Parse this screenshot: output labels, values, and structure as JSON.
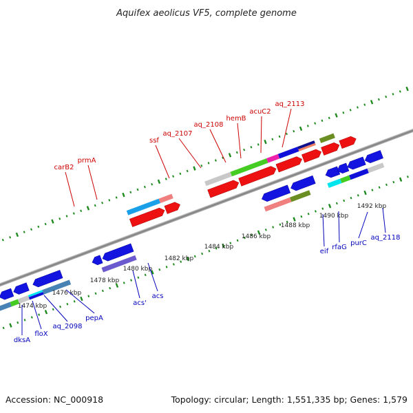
{
  "title": "Aquifex aeolicus VF5, complete genome",
  "footer": {
    "accession": "Accession: NC_000918",
    "summary": "Topology: circular; Length: 1,551,335 bp; Genes: 1,579"
  },
  "colors": {
    "backbone": "#8a8a8a",
    "tick": "#1e8a1e",
    "top_label": "#cc0000",
    "bottom_label": "#0000bb"
  },
  "scale_ticks": [
    "1474 kbp",
    "1476 kbp",
    "1478 kbp",
    "1480 kbp",
    "1482 kbp",
    "1484 kbp",
    "1486 kbp",
    "1488 kbp",
    "1490 kbp",
    "1492 kbp"
  ],
  "top_genes": [
    "carB2",
    "prmA",
    "ssf",
    "aq_2107",
    "aq_2108",
    "hemB",
    "acuC2",
    "aq_2113"
  ],
  "bottom_genes": [
    "dksA",
    "floX",
    "aq_2098",
    "pepA",
    "acs'",
    "acs",
    "eif",
    "rfaG",
    "purC",
    "aq_2118"
  ]
}
